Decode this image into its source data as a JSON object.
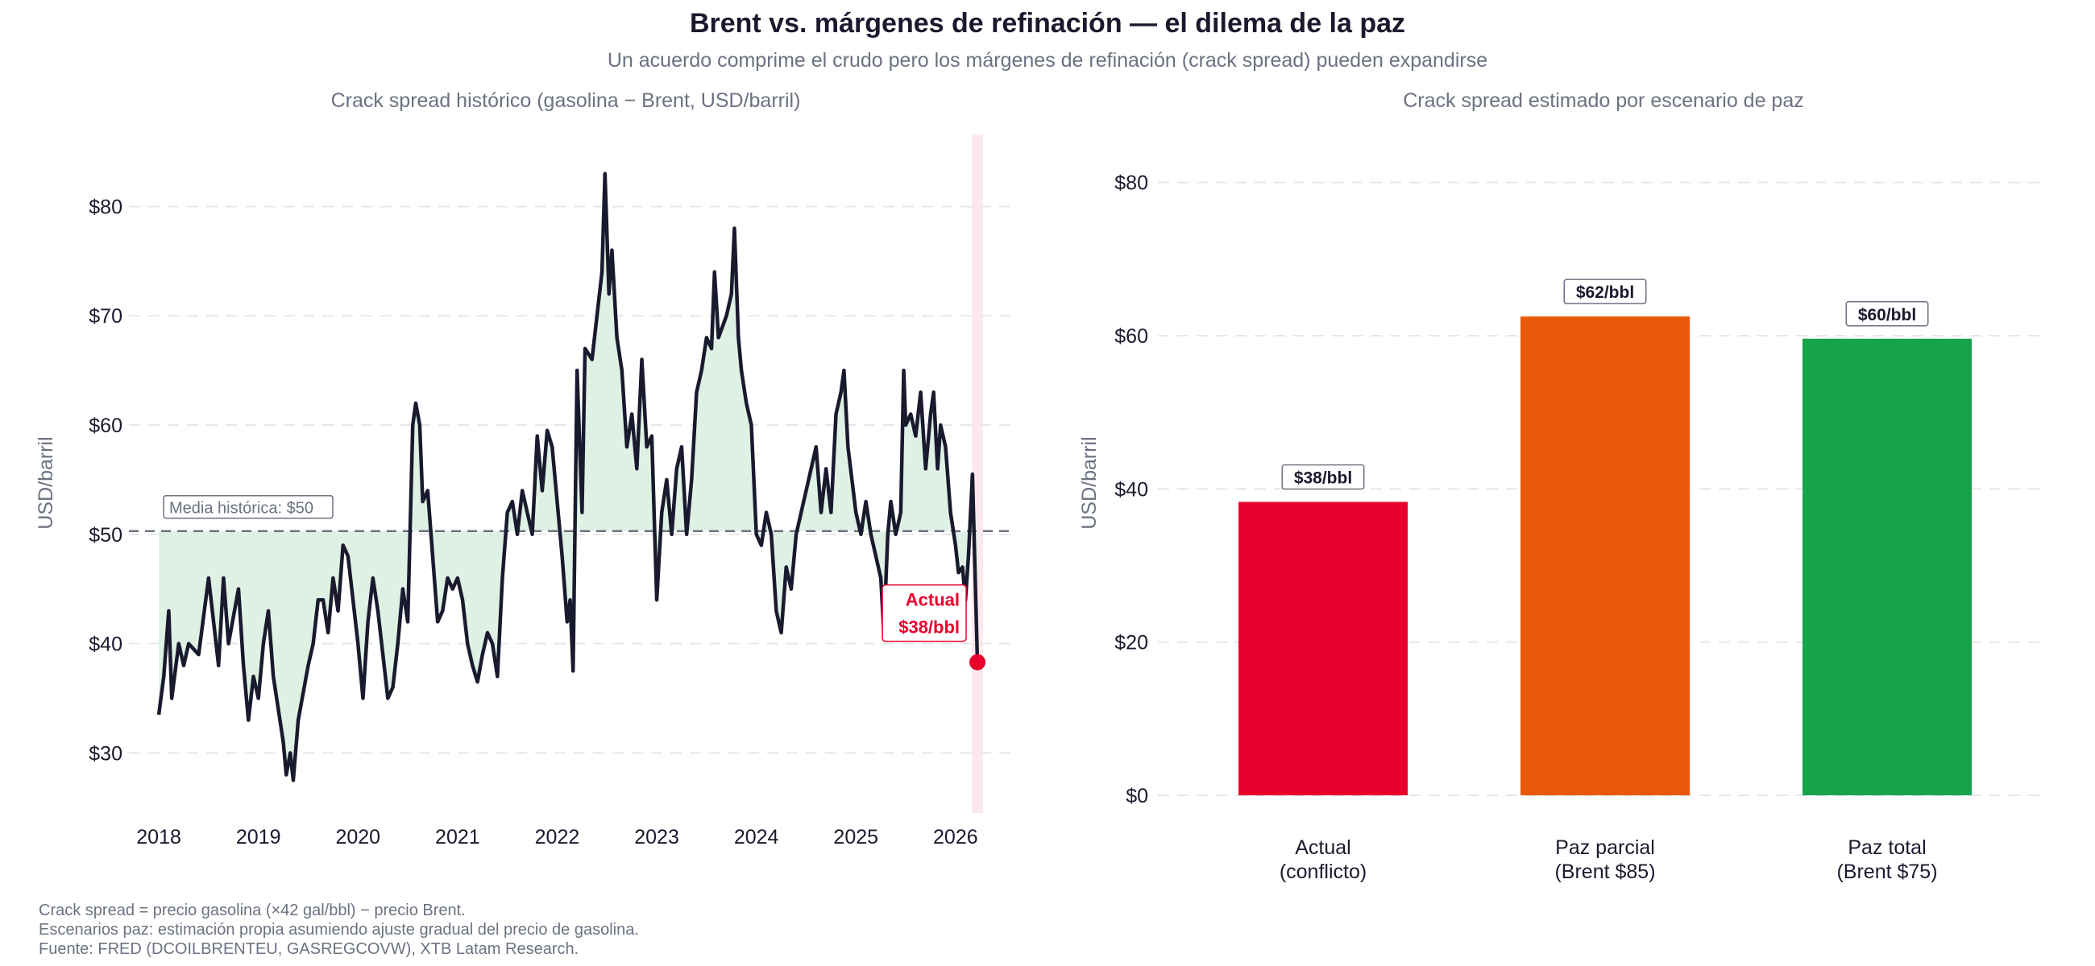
{
  "title": "Brent vs. márgenes de refinación — el dilema de la paz",
  "subtitle": "Un acuerdo comprime el crudo pero los márgenes de refinación (crack spread) pueden expandirse",
  "footnotes": [
    "Crack spread = precio gasolina (×42 gal/bbl) − precio Brent.",
    "Escenarios paz: estimación propia asumiendo ajuste gradual del precio de gasolina.",
    "Fuente: FRED (DCOILBRENTEU, GASREGCOVW), XTB Latam Research."
  ],
  "colors": {
    "line": "#1a1a2e",
    "fill": "#dcf0e3",
    "actual": "#e8002d",
    "parcial": "#e8590c",
    "total": "#16a34a",
    "muted": "#6b7280"
  },
  "chart_data": [
    {
      "type": "line",
      "title": "Crack spread histórico (gasolina − Brent, USD/barril)",
      "ylabel": "USD/barril",
      "xlabel": "",
      "xlim": [
        2017.7,
        2026.6
      ],
      "ylim": [
        24.5,
        86
      ],
      "xticks": [
        2018,
        2019,
        2020,
        2021,
        2022,
        2023,
        2024,
        2025,
        2026
      ],
      "xtick_labels": [
        "2018",
        "2019",
        "2020",
        "2021",
        "2022",
        "2023",
        "2024",
        "2025",
        "2026"
      ],
      "yticks": [
        30,
        40,
        50,
        60,
        70,
        80
      ],
      "ytick_labels": [
        "$30",
        "$40",
        "$50",
        "$60",
        "$70",
        "$80"
      ],
      "grid": true,
      "mean": {
        "value": 50.3,
        "label": "Media histórica: $50"
      },
      "current": {
        "x": 2026.22,
        "value": 38.3,
        "label_line1": "Actual",
        "label_line2": "$38/bbl"
      },
      "x": [
        2018.0,
        2018.05,
        2018.1,
        2018.13,
        2018.2,
        2018.25,
        2018.3,
        2018.4,
        2018.5,
        2018.55,
        2018.6,
        2018.65,
        2018.7,
        2018.8,
        2018.85,
        2018.9,
        2018.95,
        2019.0,
        2019.05,
        2019.1,
        2019.15,
        2019.2,
        2019.25,
        2019.28,
        2019.32,
        2019.35,
        2019.4,
        2019.5,
        2019.55,
        2019.6,
        2019.65,
        2019.7,
        2019.75,
        2019.8,
        2019.85,
        2019.9,
        2019.95,
        2020.0,
        2020.05,
        2020.1,
        2020.15,
        2020.2,
        2020.25,
        2020.3,
        2020.35,
        2020.4,
        2020.45,
        2020.5,
        2020.55,
        2020.58,
        2020.62,
        2020.65,
        2020.7,
        2020.75,
        2020.8,
        2020.85,
        2020.9,
        2020.95,
        2021.0,
        2021.05,
        2021.1,
        2021.15,
        2021.2,
        2021.25,
        2021.3,
        2021.35,
        2021.4,
        2021.45,
        2021.5,
        2021.55,
        2021.6,
        2021.65,
        2021.7,
        2021.75,
        2021.8,
        2021.85,
        2021.9,
        2021.95,
        2022.0,
        2022.05,
        2022.1,
        2022.13,
        2022.16,
        2022.2,
        2022.25,
        2022.28,
        2022.35,
        2022.4,
        2022.45,
        2022.48,
        2022.52,
        2022.55,
        2022.6,
        2022.65,
        2022.7,
        2022.75,
        2022.8,
        2022.85,
        2022.9,
        2022.95,
        2023.0,
        2023.05,
        2023.1,
        2023.15,
        2023.2,
        2023.25,
        2023.3,
        2023.35,
        2023.4,
        2023.45,
        2023.5,
        2023.55,
        2023.58,
        2023.62,
        2023.7,
        2023.75,
        2023.78,
        2023.82,
        2023.85,
        2023.9,
        2023.95,
        2024.0,
        2024.05,
        2024.1,
        2024.15,
        2024.2,
        2024.25,
        2024.3,
        2024.35,
        2024.4,
        2024.5,
        2024.55,
        2024.6,
        2024.65,
        2024.7,
        2024.75,
        2024.8,
        2024.85,
        2024.88,
        2024.92,
        2024.96,
        2025.0,
        2025.05,
        2025.1,
        2025.15,
        2025.2,
        2025.25,
        2025.28,
        2025.32,
        2025.35,
        2025.4,
        2025.45,
        2025.48,
        2025.5,
        2025.55,
        2025.6,
        2025.65,
        2025.7,
        2025.75,
        2025.78,
        2025.82,
        2025.85,
        2025.9,
        2025.95,
        2026.0,
        2026.03,
        2026.07,
        2026.1,
        2026.13,
        2026.17,
        2026.22
      ],
      "values": [
        33.5,
        37,
        43,
        35,
        40,
        38,
        40,
        39,
        46,
        42,
        38,
        46,
        40,
        45,
        38,
        33,
        37,
        35,
        40,
        43,
        37,
        34,
        31,
        28,
        30,
        27.5,
        33,
        38,
        40,
        44,
        44,
        41,
        46,
        43,
        49,
        48,
        44,
        40,
        35,
        42,
        46,
        43,
        39,
        35,
        36,
        40,
        45,
        42,
        60,
        62,
        60,
        53,
        54,
        48,
        42,
        43,
        46,
        45,
        46,
        44,
        40,
        38,
        36.5,
        39,
        41,
        40,
        37,
        46,
        52,
        53,
        50,
        54,
        52,
        50,
        59,
        54,
        59.5,
        58,
        53,
        48,
        42,
        44,
        37.5,
        65,
        52,
        67,
        66,
        70,
        74,
        83,
        72,
        76,
        68,
        65,
        58,
        61,
        56,
        66,
        58,
        59,
        44,
        52,
        55,
        50,
        56,
        58,
        50,
        55,
        63,
        65,
        68,
        67,
        74,
        68,
        70,
        72,
        78,
        68,
        65,
        62,
        60,
        50,
        49,
        52,
        50,
        43,
        41,
        47,
        45,
        50,
        54,
        56,
        58,
        52,
        56,
        52,
        61,
        63,
        65,
        58,
        55,
        52,
        50,
        53,
        50,
        48,
        46,
        41,
        50,
        53,
        50,
        52,
        65,
        60,
        61,
        59,
        63,
        56,
        61,
        63,
        56,
        60,
        58,
        52,
        49,
        46.5,
        47,
        44,
        48,
        55.5,
        38.3
      ]
    },
    {
      "type": "bar",
      "title": "Crack spread estimado por escenario de paz",
      "ylabel": "USD/barril",
      "ylim": [
        -2,
        87
      ],
      "yticks": [
        0,
        20,
        40,
        60,
        80
      ],
      "ytick_labels": [
        "$0",
        "$20",
        "$40",
        "$60",
        "$80"
      ],
      "grid": true,
      "categories": [
        [
          "Actual",
          "(conflicto)"
        ],
        [
          "Paz parcial",
          "(Brent $85)"
        ],
        [
          "Paz total",
          "(Brent $75)"
        ]
      ],
      "values": [
        38.3,
        62.5,
        59.6
      ],
      "data_labels": [
        "$38/bbl",
        "$62/bbl",
        "$60/bbl"
      ],
      "bar_colors": [
        "#e8002d",
        "#e8590c",
        "#16a34a"
      ]
    }
  ]
}
